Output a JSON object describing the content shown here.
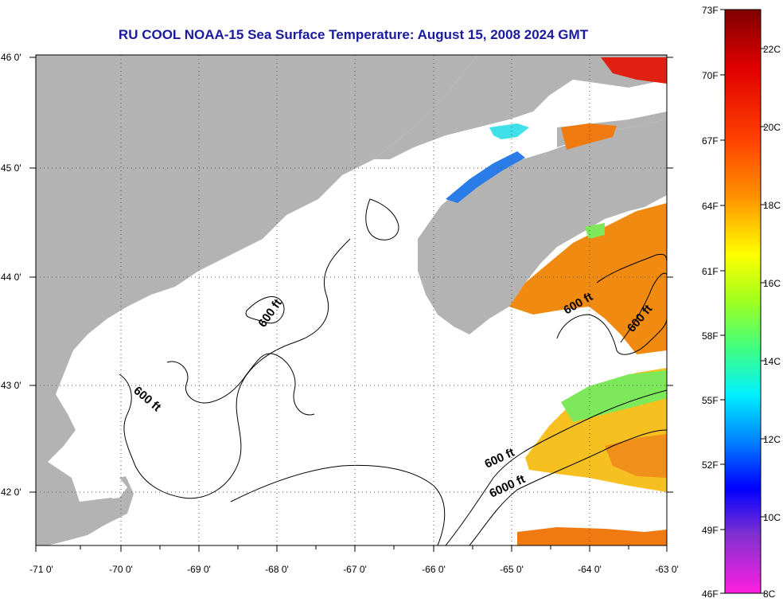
{
  "title": "RU COOL  NOAA-15  Sea Surface Temperature:  August 15, 2008 2024 GMT",
  "map": {
    "lon_ticks": [
      "-71 0'",
      "-70 0'",
      "-69 0'",
      "-68 0'",
      "-67 0'",
      "-66 0'",
      "-65 0'",
      "-64 0'",
      "-63 0'"
    ],
    "lat_ticks": [
      "46 0'",
      "45 0'",
      "44 0'",
      "43 0'",
      "42 0'"
    ],
    "contour_labels": [
      "600 ft",
      "600 ft",
      "600 ft",
      "600 ft",
      "600 ft",
      "6000 ft"
    ],
    "land_color": "#b3b3b3",
    "water_color": "#ffffff"
  },
  "colorbar": {
    "fahrenheit": [
      "73F",
      "70F",
      "67F",
      "64F",
      "61F",
      "58F",
      "55F",
      "52F",
      "49F",
      "46F"
    ],
    "celsius": [
      "22C",
      "20C",
      "18C",
      "16C",
      "14C",
      "12C",
      "10C",
      "8C"
    ],
    "gradient": [
      "#800000",
      "#ff0000",
      "#ff8000",
      "#ffff00",
      "#80ff40",
      "#00ffff",
      "#0080ff",
      "#0000ff",
      "#ff00ff"
    ]
  }
}
